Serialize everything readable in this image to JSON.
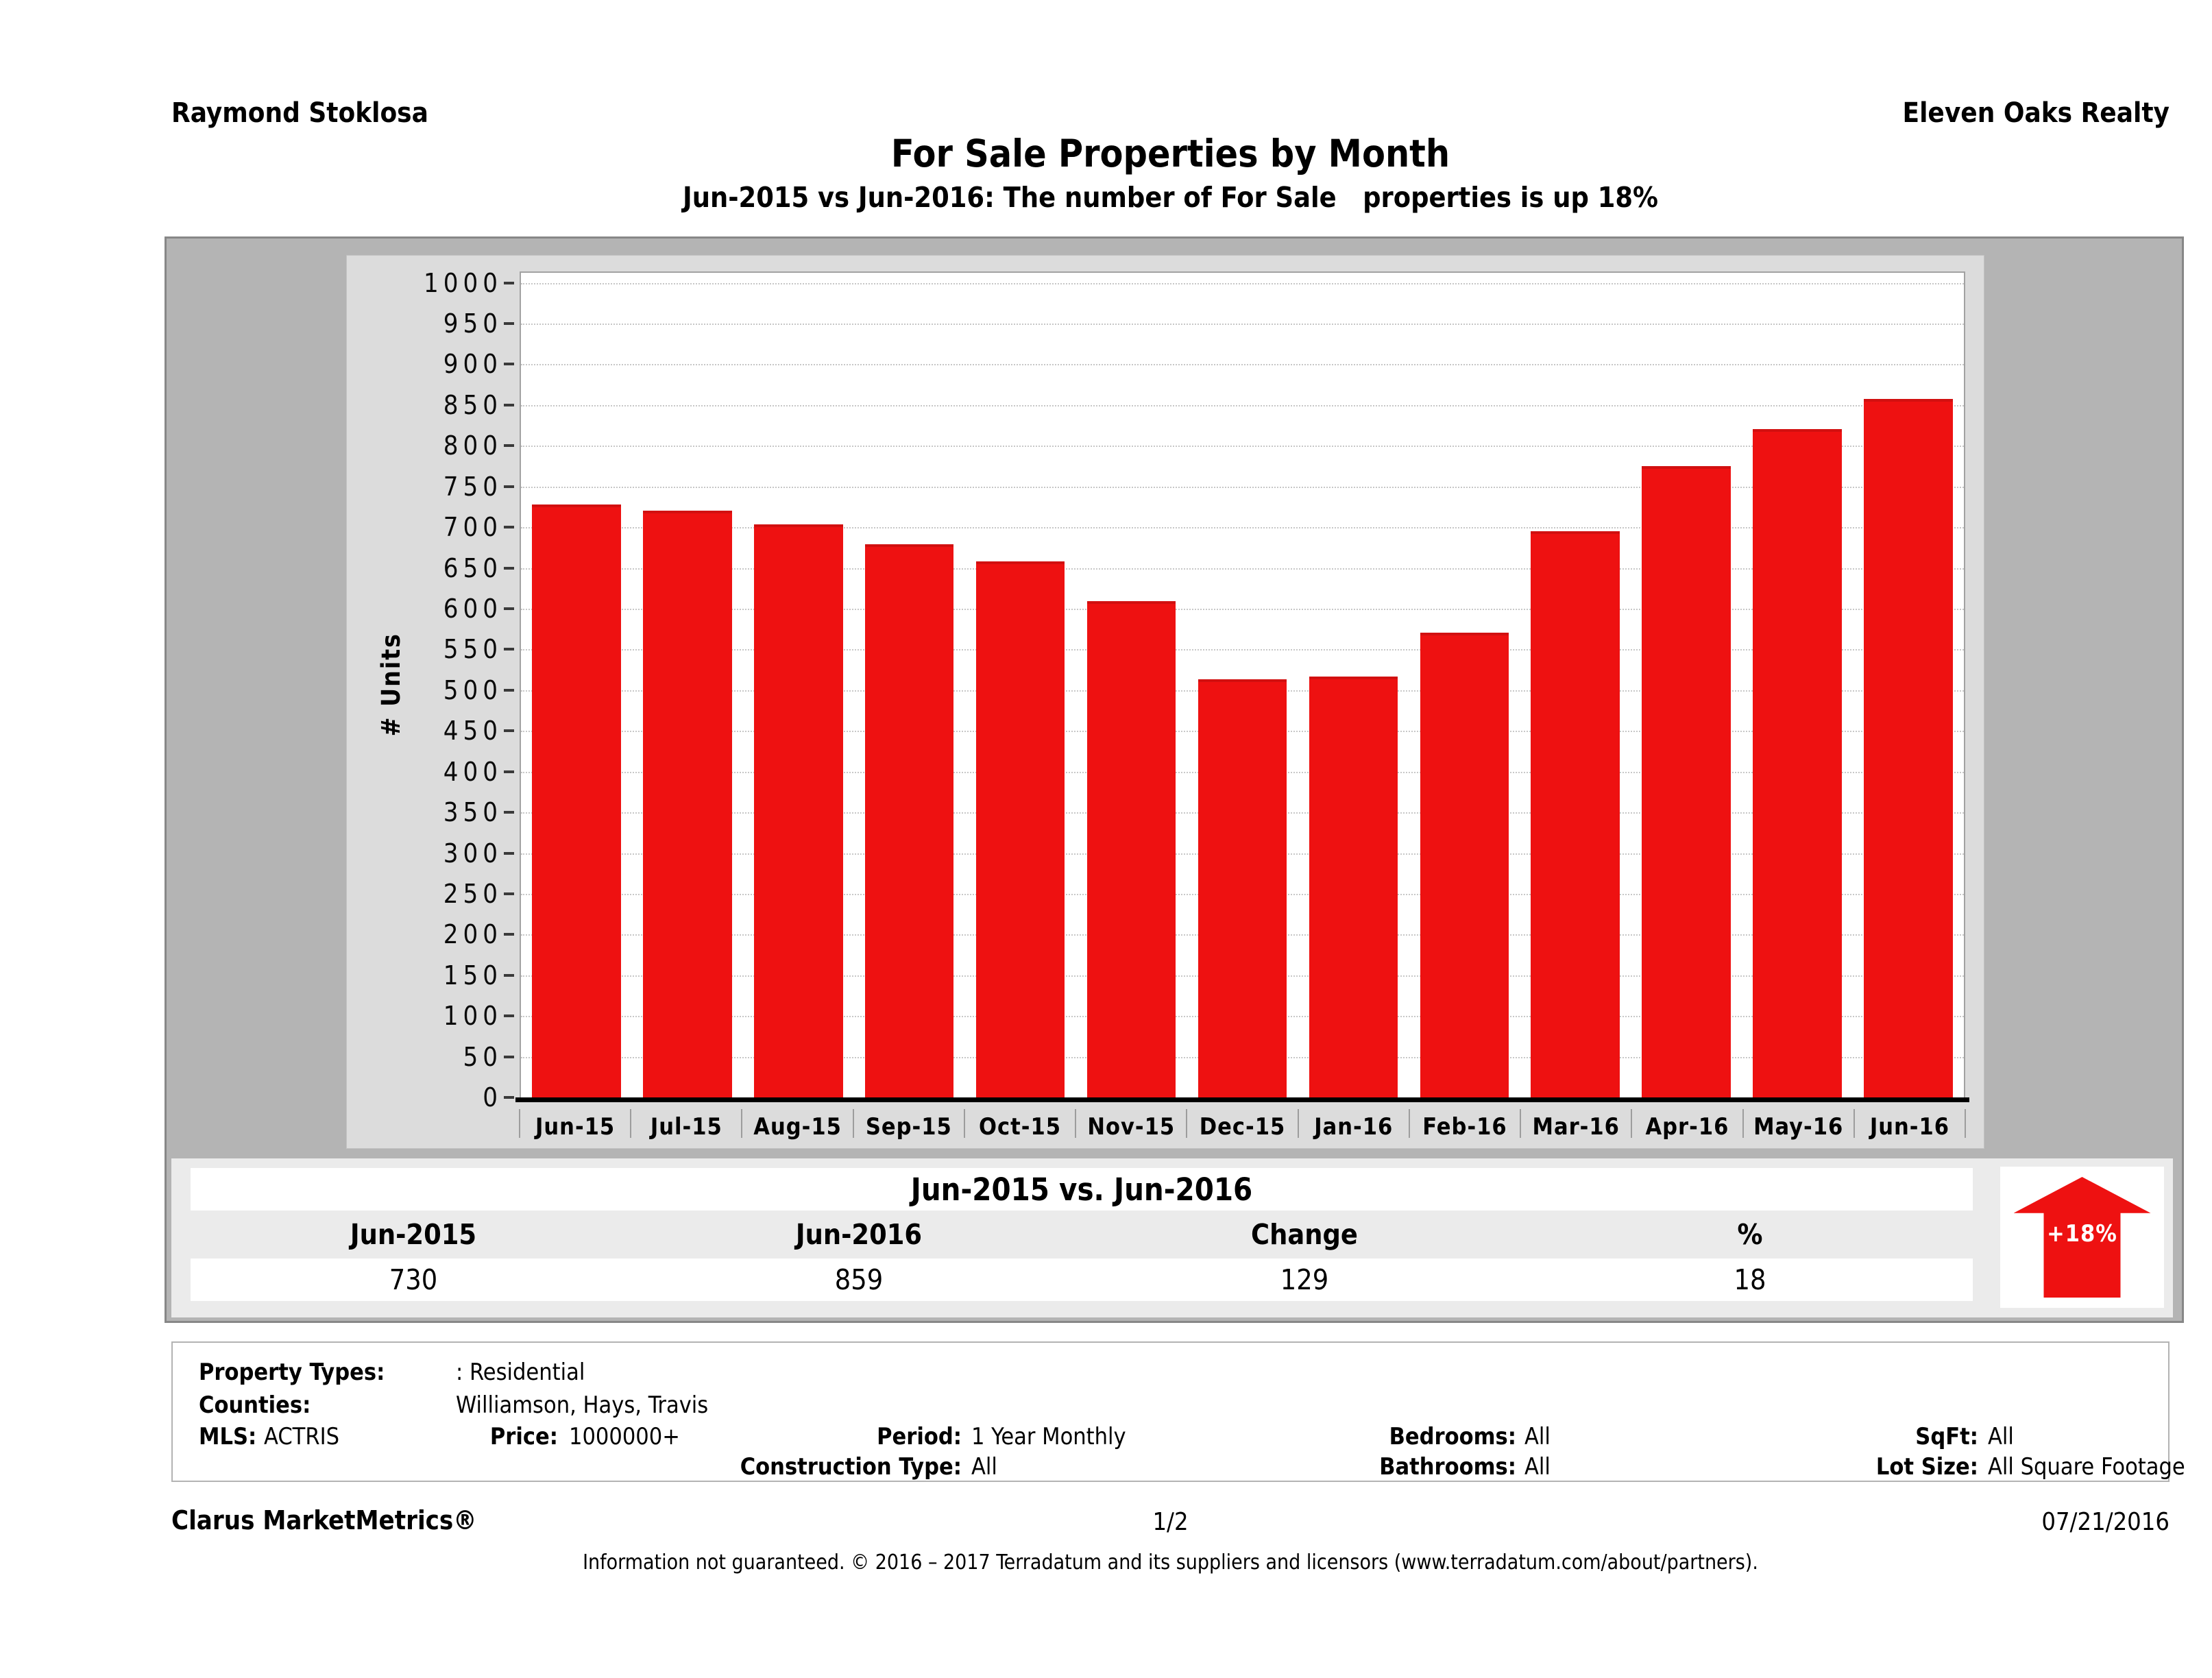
{
  "header": {
    "agent": "Raymond Stoklosa",
    "company": "Eleven Oaks Realty"
  },
  "title": "For Sale Properties by Month",
  "subtitle": "Jun-2015 vs Jun-2016: The number of For Sale   properties is up 18%",
  "chart_data": {
    "type": "bar",
    "title": "For Sale Properties by Month",
    "xlabel": "",
    "ylabel": "# Units",
    "ylim": [
      0,
      1000
    ],
    "ytick_step": 50,
    "grid": "horizontal-dotted",
    "legend": "none",
    "bar_color": "#ee1111",
    "categories": [
      "Jun-15",
      "Jul-15",
      "Aug-15",
      "Sep-15",
      "Oct-15",
      "Nov-15",
      "Dec-15",
      "Jan-16",
      "Feb-16",
      "Mar-16",
      "Apr-16",
      "May-16",
      "Jun-16"
    ],
    "values": [
      730,
      722,
      705,
      681,
      660,
      611,
      515,
      518,
      572,
      697,
      777,
      822,
      859
    ]
  },
  "summary_table": {
    "title": "Jun-2015 vs. Jun-2016",
    "columns": [
      "Jun-2015",
      "Jun-2016",
      "Change",
      "%"
    ],
    "values": [
      "730",
      "859",
      "129",
      "18"
    ],
    "arrow_label": "+18%",
    "arrow_color": "#ee1111"
  },
  "filters": {
    "property_types_label": "Property Types:",
    "property_types": ": Residential",
    "counties_label": "Counties:",
    "counties": "Williamson, Hays, Travis",
    "mls_label": "MLS:",
    "mls": "ACTRIS",
    "price_label": "Price:",
    "price": "1000000+",
    "period_label": "Period:",
    "period": "1 Year Monthly",
    "construction_label": "Construction Type:",
    "construction": "All",
    "bedrooms_label": "Bedrooms:",
    "bedrooms": "All",
    "bathrooms_label": "Bathrooms:",
    "bathrooms": "All",
    "sqft_label": "SqFt:",
    "sqft": "All",
    "lot_label": "Lot Size:",
    "lot": "All Square Footage"
  },
  "footer": {
    "brand": "Clarus MarketMetrics®",
    "page": "1/2",
    "date": "07/21/2016",
    "disclaimer": "Information not guaranteed. © 2016 – 2017 Terradatum and its suppliers and licensors (www.terradatum.com/about/partners)."
  }
}
